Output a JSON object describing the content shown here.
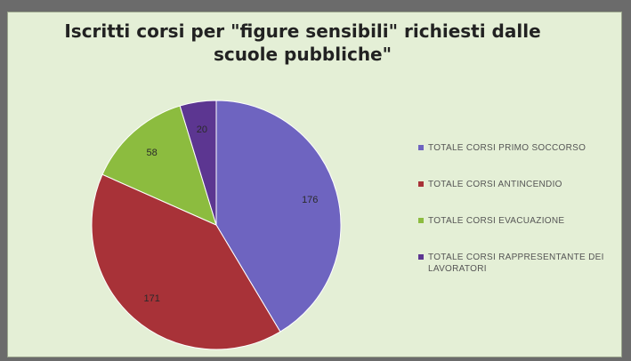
{
  "chart_data": {
    "type": "pie",
    "title": "Iscritti corsi per \"figure sensibili\" richiesti dalle scuole pubbliche\"",
    "categories": [
      "TOTALE CORSI PRIMO SOCCORSO",
      "TOTALE CORSI ANTINCENDIO",
      "TOTALE CORSI EVACUAZIONE",
      "TOTALE CORSI RAPPRESENTANTE DEI LAVORATORI"
    ],
    "values": [
      176,
      171,
      58,
      20
    ],
    "value_labels": [
      "176",
      "171",
      "58",
      "20"
    ],
    "colors": [
      "#6e64c0",
      "#a83238",
      "#8cbc3f",
      "#5c3691"
    ],
    "legend_position": "right"
  }
}
